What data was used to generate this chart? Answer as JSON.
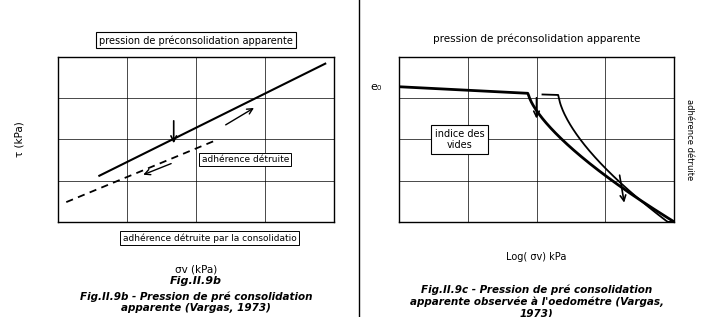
{
  "fig_width": 7.25,
  "fig_height": 3.17,
  "bg_color": "#ffffff",
  "panel_left": {
    "title_box": "pression de préconsolidation apparente",
    "xlabel": "σv (kPa)",
    "ylabel": "τ (kPa)",
    "label_adhere_detruit": "adhérence détruite",
    "label_adhere_detruit_consol": "adhérence détruite par la consolidatio",
    "caption_bold": "Fig.II.9b",
    "caption_italic": " - Pression de pré consolidation\napparente (Vargas, 1973)"
  },
  "panel_right": {
    "title_above": "pression de préconsolidation apparente",
    "xlabel": "Log( σv) kPa",
    "ylabel_label": "e₀",
    "label_indice": "indice des\nvides",
    "label_adhere_detruit_rot": "adhérence détruite",
    "caption_bold": "Fig.II.9c",
    "caption_italic": " - Pression de pré consolidation\napparente observée à l'oedométre (Vargas,\n1973)"
  }
}
